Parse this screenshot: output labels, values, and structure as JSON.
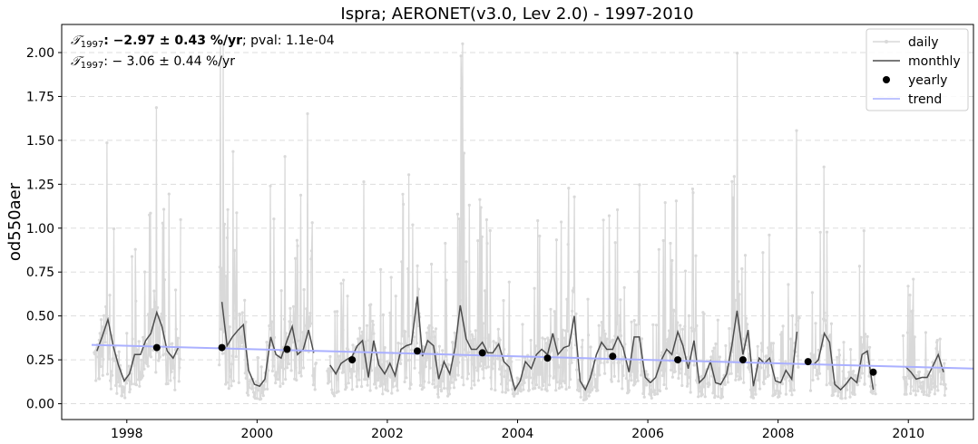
{
  "chart_data": {
    "type": "line",
    "title": "Ispra; AERONET(v3.0, Lev 2.0) - 1997-2010",
    "ylabel": "od550aer",
    "xlabel": "",
    "xlim": [
      1997.0,
      2011.0
    ],
    "ylim": [
      -0.09,
      2.16
    ],
    "xticks": [
      1998,
      2000,
      2002,
      2004,
      2006,
      2008,
      2010
    ],
    "xtick_labels": [
      "1998",
      "2000",
      "2002",
      "2004",
      "2006",
      "2008",
      "2010"
    ],
    "yticks": [
      0.0,
      0.25,
      0.5,
      0.75,
      1.0,
      1.25,
      1.5,
      1.75,
      2.0
    ],
    "ytick_labels": [
      "0.00",
      "0.25",
      "0.50",
      "0.75",
      "1.00",
      "1.25",
      "1.50",
      "1.75",
      "2.00"
    ],
    "grid": "horizontal dashed",
    "legend_position": "top-right",
    "annotations": {
      "line1": {
        "symbol": "𝒯",
        "sub": "1997",
        "value": ": −2.97 ± 0.43 %/yr",
        "rest": "; pval: 1.1e-04"
      },
      "line2": {
        "symbol": "𝒯",
        "sub": "1997",
        "value": ": − 3.06 ± 0.44 %/yr"
      }
    },
    "series": [
      {
        "name": "daily",
        "color": "#d9d9d9",
        "style": "line+points"
      },
      {
        "name": "monthly",
        "color": "#4d4d4d",
        "style": "line",
        "segments": [
          [
            [
              1997.54,
              0.3
            ],
            [
              1997.62,
              0.38
            ],
            [
              1997.71,
              0.48
            ],
            [
              1997.79,
              0.33
            ],
            [
              1997.87,
              0.22
            ],
            [
              1997.96,
              0.13
            ],
            [
              1998.04,
              0.17
            ],
            [
              1998.12,
              0.28
            ],
            [
              1998.21,
              0.28
            ],
            [
              1998.29,
              0.36
            ],
            [
              1998.37,
              0.4
            ],
            [
              1998.46,
              0.52
            ],
            [
              1998.54,
              0.44
            ],
            [
              1998.62,
              0.3
            ],
            [
              1998.71,
              0.26
            ],
            [
              1998.79,
              0.32
            ]
          ],
          [
            [
              1999.46,
              0.58
            ],
            [
              1999.54,
              0.33
            ],
            [
              1999.62,
              0.38
            ],
            [
              1999.71,
              0.42
            ],
            [
              1999.79,
              0.45
            ],
            [
              1999.87,
              0.19
            ],
            [
              1999.96,
              0.11
            ],
            [
              2000.04,
              0.1
            ],
            [
              2000.12,
              0.14
            ],
            [
              2000.21,
              0.38
            ],
            [
              2000.29,
              0.28
            ],
            [
              2000.37,
              0.26
            ],
            [
              2000.46,
              0.36
            ],
            [
              2000.54,
              0.44
            ],
            [
              2000.62,
              0.28
            ],
            [
              2000.71,
              0.31
            ],
            [
              2000.79,
              0.42
            ],
            [
              2000.87,
              0.29
            ]
          ],
          [
            [
              2001.12,
              0.22
            ],
            [
              2001.21,
              0.17
            ],
            [
              2001.29,
              0.23
            ],
            [
              2001.37,
              0.25
            ],
            [
              2001.46,
              0.27
            ],
            [
              2001.54,
              0.33
            ],
            [
              2001.62,
              0.36
            ],
            [
              2001.71,
              0.15
            ],
            [
              2001.79,
              0.36
            ],
            [
              2001.87,
              0.22
            ],
            [
              2001.96,
              0.17
            ],
            [
              2002.04,
              0.23
            ],
            [
              2002.12,
              0.16
            ],
            [
              2002.21,
              0.31
            ],
            [
              2002.29,
              0.33
            ],
            [
              2002.37,
              0.34
            ],
            [
              2002.46,
              0.61
            ],
            [
              2002.54,
              0.27
            ],
            [
              2002.62,
              0.36
            ],
            [
              2002.71,
              0.33
            ],
            [
              2002.79,
              0.14
            ],
            [
              2002.87,
              0.24
            ],
            [
              2002.96,
              0.17
            ],
            [
              2003.04,
              0.32
            ],
            [
              2003.12,
              0.56
            ],
            [
              2003.21,
              0.37
            ],
            [
              2003.29,
              0.31
            ],
            [
              2003.37,
              0.31
            ],
            [
              2003.46,
              0.35
            ],
            [
              2003.54,
              0.29
            ],
            [
              2003.62,
              0.29
            ],
            [
              2003.71,
              0.34
            ],
            [
              2003.79,
              0.24
            ],
            [
              2003.87,
              0.21
            ],
            [
              2003.96,
              0.08
            ],
            [
              2004.04,
              0.13
            ],
            [
              2004.12,
              0.24
            ],
            [
              2004.21,
              0.2
            ],
            [
              2004.29,
              0.28
            ],
            [
              2004.37,
              0.31
            ],
            [
              2004.46,
              0.28
            ],
            [
              2004.54,
              0.4
            ],
            [
              2004.62,
              0.28
            ],
            [
              2004.71,
              0.32
            ],
            [
              2004.79,
              0.33
            ],
            [
              2004.87,
              0.5
            ],
            [
              2004.96,
              0.13
            ],
            [
              2005.04,
              0.08
            ],
            [
              2005.12,
              0.15
            ],
            [
              2005.21,
              0.28
            ],
            [
              2005.29,
              0.35
            ],
            [
              2005.37,
              0.31
            ],
            [
              2005.46,
              0.31
            ],
            [
              2005.54,
              0.38
            ],
            [
              2005.62,
              0.32
            ],
            [
              2005.71,
              0.18
            ],
            [
              2005.79,
              0.38
            ],
            [
              2005.87,
              0.38
            ],
            [
              2005.96,
              0.15
            ],
            [
              2006.04,
              0.12
            ],
            [
              2006.12,
              0.15
            ],
            [
              2006.21,
              0.25
            ],
            [
              2006.29,
              0.31
            ],
            [
              2006.37,
              0.28
            ],
            [
              2006.46,
              0.41
            ],
            [
              2006.54,
              0.33
            ],
            [
              2006.62,
              0.2
            ],
            [
              2006.71,
              0.36
            ],
            [
              2006.79,
              0.12
            ],
            [
              2006.87,
              0.15
            ],
            [
              2006.96,
              0.24
            ],
            [
              2007.04,
              0.12
            ],
            [
              2007.12,
              0.11
            ],
            [
              2007.21,
              0.17
            ],
            [
              2007.29,
              0.33
            ],
            [
              2007.37,
              0.53
            ],
            [
              2007.46,
              0.28
            ],
            [
              2007.54,
              0.42
            ],
            [
              2007.62,
              0.1
            ],
            [
              2007.71,
              0.26
            ],
            [
              2007.79,
              0.23
            ],
            [
              2007.87,
              0.26
            ],
            [
              2007.96,
              0.13
            ],
            [
              2008.04,
              0.12
            ],
            [
              2008.12,
              0.19
            ],
            [
              2008.21,
              0.14
            ],
            [
              2008.29,
              0.41
            ]
          ],
          [
            [
              2008.54,
              0.22
            ],
            [
              2008.62,
              0.25
            ],
            [
              2008.71,
              0.4
            ],
            [
              2008.79,
              0.35
            ],
            [
              2008.87,
              0.11
            ],
            [
              2008.96,
              0.08
            ],
            [
              2009.04,
              0.11
            ],
            [
              2009.12,
              0.15
            ],
            [
              2009.21,
              0.12
            ],
            [
              2009.29,
              0.28
            ],
            [
              2009.37,
              0.3
            ],
            [
              2009.46,
              0.08
            ]
          ],
          [
            [
              2009.96,
              0.21
            ],
            [
              2010.04,
              0.18
            ],
            [
              2010.12,
              0.14
            ],
            [
              2010.21,
              0.15
            ],
            [
              2010.29,
              0.15
            ],
            [
              2010.37,
              0.21
            ],
            [
              2010.46,
              0.28
            ],
            [
              2010.54,
              0.18
            ]
          ]
        ]
      },
      {
        "name": "yearly",
        "color": "#000000",
        "style": "points",
        "points": [
          [
            1998.46,
            0.32
          ],
          [
            1999.46,
            0.32
          ],
          [
            2000.46,
            0.31
          ],
          [
            2001.46,
            0.25
          ],
          [
            2002.46,
            0.3
          ],
          [
            2003.46,
            0.29
          ],
          [
            2004.46,
            0.26
          ],
          [
            2005.46,
            0.27
          ],
          [
            2006.46,
            0.25
          ],
          [
            2007.46,
            0.25
          ],
          [
            2008.46,
            0.24
          ],
          [
            2009.46,
            0.18
          ]
        ]
      },
      {
        "name": "trend",
        "color": "#aab0ff",
        "style": "line",
        "points": [
          [
            1997.46,
            0.335
          ],
          [
            2011.0,
            0.2
          ]
        ]
      }
    ]
  }
}
